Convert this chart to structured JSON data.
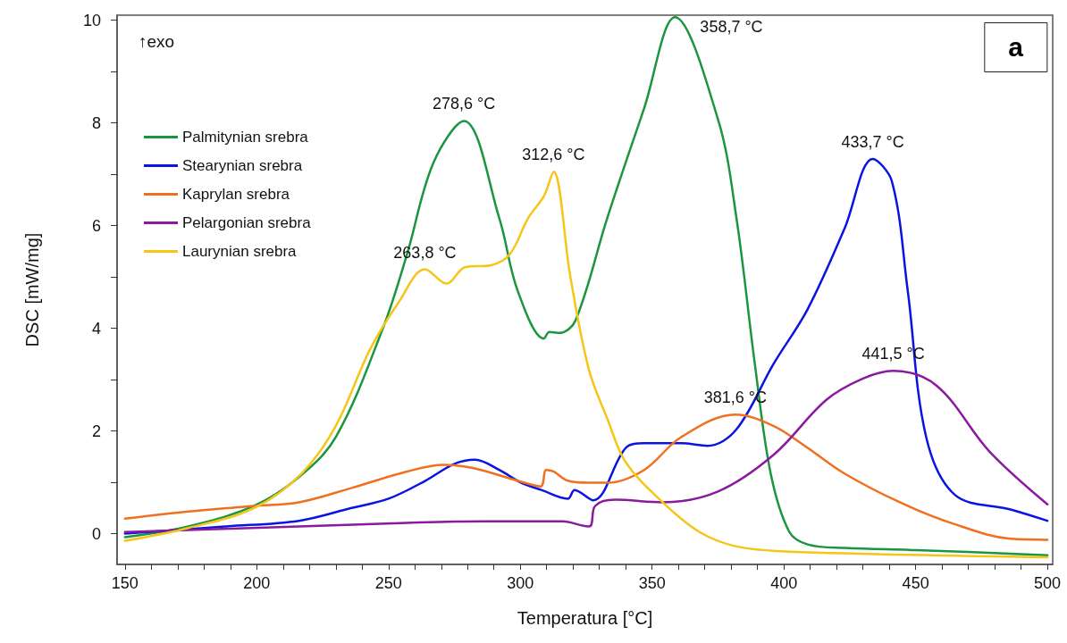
{
  "chart_data": {
    "type": "line",
    "title": "a",
    "xlabel": "Temperatura [°C]",
    "ylabel": "DSC [mW/mg]",
    "xlim": [
      147,
      502
    ],
    "ylim": [
      -0.6,
      10.1
    ],
    "xticks": [
      150,
      {
        "value": 160,
        "label": null
      },
      {
        "value": 170,
        "label": null
      },
      {
        "value": 180,
        "label": null
      },
      {
        "value": 190,
        "label": null
      },
      200,
      {
        "value": 210,
        "label": null
      },
      {
        "value": 220,
        "label": null
      },
      {
        "value": 230,
        "label": null
      },
      {
        "value": 240,
        "label": null
      },
      250,
      {
        "value": 260,
        "label": null
      },
      {
        "value": 270,
        "label": null
      },
      {
        "value": 280,
        "label": null
      },
      {
        "value": 290,
        "label": null
      },
      300,
      {
        "value": 310,
        "label": null
      },
      {
        "value": 320,
        "label": null
      },
      {
        "value": 330,
        "label": null
      },
      {
        "value": 340,
        "label": null
      },
      350,
      {
        "value": 360,
        "label": null
      },
      {
        "value": 370,
        "label": null
      },
      {
        "value": 380,
        "label": null
      },
      {
        "value": 390,
        "label": null
      },
      400,
      {
        "value": 410,
        "label": null
      },
      {
        "value": 420,
        "label": null
      },
      {
        "value": 430,
        "label": null
      },
      {
        "value": 440,
        "label": null
      },
      450,
      {
        "value": 460,
        "label": null
      },
      {
        "value": 470,
        "label": null
      },
      {
        "value": 480,
        "label": null
      },
      {
        "value": 490,
        "label": null
      },
      500
    ],
    "yticks": [
      0,
      {
        "value": 1,
        "label": null
      },
      2,
      {
        "value": 3,
        "label": null
      },
      4,
      {
        "value": 5,
        "label": null
      },
      6,
      {
        "value": 7,
        "label": null
      },
      8,
      {
        "value": 9,
        "label": null
      },
      10
    ],
    "grid": false,
    "legend": "top left",
    "marker": "none",
    "line_style": "solid",
    "series": [
      {
        "name": "Palmitynian srebra",
        "color": "#1a9641",
        "x": [
          150,
          174,
          199,
          216,
          230,
          248,
          257,
          267,
          278.6,
          292,
          299,
          309,
          311,
          315,
          321,
          333,
          347,
          358.7,
          375,
          382,
          389,
          395,
          402,
          409,
          423,
          450,
          500
        ],
        "values": [
          -0.07,
          0.14,
          0.54,
          1.1,
          1.88,
          4.02,
          5.44,
          7.22,
          8.04,
          6.15,
          4.73,
          3.8,
          3.93,
          3.91,
          4.16,
          6.15,
          8.29,
          10.06,
          8.07,
          6.15,
          3.3,
          1.17,
          0.04,
          -0.21,
          -0.28,
          -0.32,
          -0.42
        ]
      },
      {
        "name": "Stearynian srebra",
        "color": "#0a14e0",
        "x": [
          150,
          188,
          216,
          236,
          250,
          264,
          275,
          282.8,
          292,
          300,
          308,
          318,
          320.6,
          327.7,
          340,
          347,
          361,
          371,
          382,
          396,
          409,
          423,
          433.7,
          441,
          447,
          454,
          465,
          486,
          500
        ],
        "values": [
          0.0,
          0.14,
          0.25,
          0.5,
          0.68,
          1.03,
          1.36,
          1.44,
          1.24,
          1.0,
          0.85,
          0.68,
          0.85,
          0.65,
          1.67,
          1.76,
          1.76,
          1.71,
          2.03,
          3.3,
          4.37,
          5.94,
          7.3,
          6.86,
          4.73,
          1.88,
          0.75,
          0.47,
          0.25
        ]
      },
      {
        "name": "Kaprylan srebra",
        "color": "#f07020",
        "x": [
          150,
          174,
          199,
          216,
          236,
          257,
          271,
          282,
          299,
          307.7,
          309.8,
          312.6,
          318,
          326,
          333,
          347,
          361,
          381.6,
          396,
          409,
          423,
          444,
          465,
          486,
          500
        ],
        "values": [
          0.29,
          0.43,
          0.54,
          0.61,
          0.89,
          1.21,
          1.34,
          1.28,
          1.03,
          0.92,
          1.24,
          1.21,
          1.03,
          0.99,
          0.99,
          1.24,
          1.88,
          2.32,
          2.1,
          1.67,
          1.17,
          0.61,
          0.18,
          -0.1,
          -0.12
        ]
      },
      {
        "name": "Pelargonian srebra",
        "color": "#8a1a9e",
        "x": [
          150,
          216,
          257,
          286,
          316,
          326,
          327,
          328.4,
          336,
          354,
          375,
          396,
          416,
          430,
          441.5,
          458,
          478,
          500
        ],
        "values": [
          0.03,
          0.14,
          0.21,
          0.24,
          0.24,
          0.14,
          0.18,
          0.54,
          0.66,
          0.61,
          0.82,
          1.53,
          2.6,
          3.02,
          3.17,
          2.88,
          1.6,
          0.57
        ]
      },
      {
        "name": "Laurynian srebra",
        "color": "#f5c518",
        "x": [
          150,
          174,
          199,
          217,
          230,
          243,
          254,
          263.8,
          272,
          279,
          289,
          296,
          303,
          309,
          312.6,
          319,
          326,
          333,
          340,
          354,
          368,
          382,
          402,
          500
        ],
        "values": [
          -0.14,
          0.11,
          0.5,
          1.17,
          2.1,
          3.59,
          4.52,
          5.15,
          4.87,
          5.19,
          5.23,
          5.44,
          6.15,
          6.58,
          7.05,
          5.0,
          3.2,
          2.24,
          1.39,
          0.61,
          0.03,
          -0.25,
          -0.35,
          -0.46
        ]
      }
    ],
    "annotations": [
      "↑exo",
      {
        "text": "278,6 °C",
        "x": 278.6,
        "y": 8.04
      },
      {
        "text": "312,6 °C",
        "x": 312.6,
        "y": 7.05
      },
      {
        "text": "263,8 °C",
        "x": 263.8,
        "y": 5.15
      },
      {
        "text": "358,7 °C",
        "x": 358.7,
        "y": 10.06
      },
      {
        "text": "433,7 °C",
        "x": 433.7,
        "y": 7.3
      },
      {
        "text": "381,6 °C",
        "x": 381.6,
        "y": 2.32
      },
      {
        "text": "441,5 °C",
        "x": 441.5,
        "y": 3.17
      }
    ]
  }
}
